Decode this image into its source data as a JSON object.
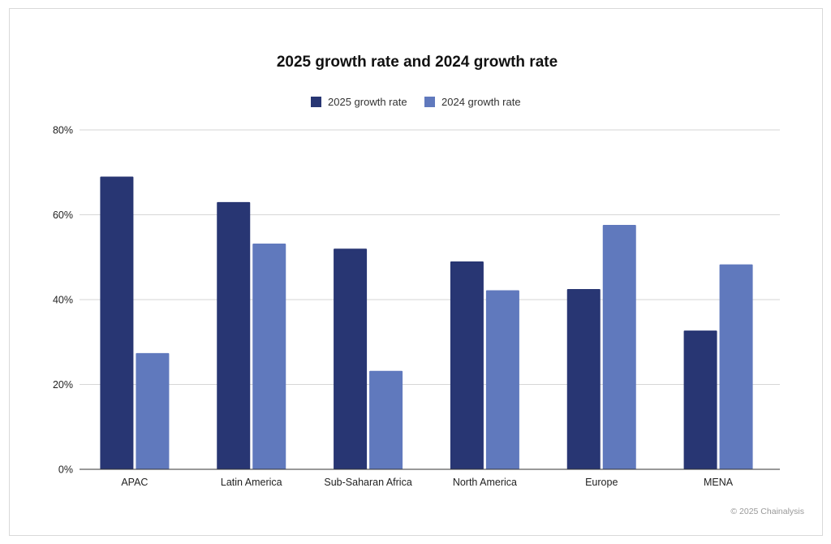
{
  "chart_data": {
    "type": "bar",
    "title": "2025 growth rate and 2024 growth rate",
    "xlabel": "",
    "ylabel": "",
    "categories": [
      "APAC",
      "Latin America",
      "Sub-Saharan Africa",
      "North America",
      "Europe",
      "MENA"
    ],
    "series": [
      {
        "name": "2025 growth rate",
        "color": "#283673",
        "values": [
          69,
          63,
          52,
          49,
          42.5,
          32.7
        ]
      },
      {
        "name": "2024 growth rate",
        "color": "#6079bd",
        "values": [
          27.4,
          53.2,
          23.2,
          42.2,
          57.6,
          48.3
        ]
      }
    ],
    "ylim": [
      0,
      80
    ],
    "yticks": [
      0,
      20,
      40,
      60,
      80
    ],
    "ytick_labels": [
      "0%",
      "20%",
      "40%",
      "60%",
      "80%"
    ],
    "grid": true,
    "legend_position": "top-center"
  },
  "footer": {
    "copyright": "© 2025 Chainalysis"
  }
}
